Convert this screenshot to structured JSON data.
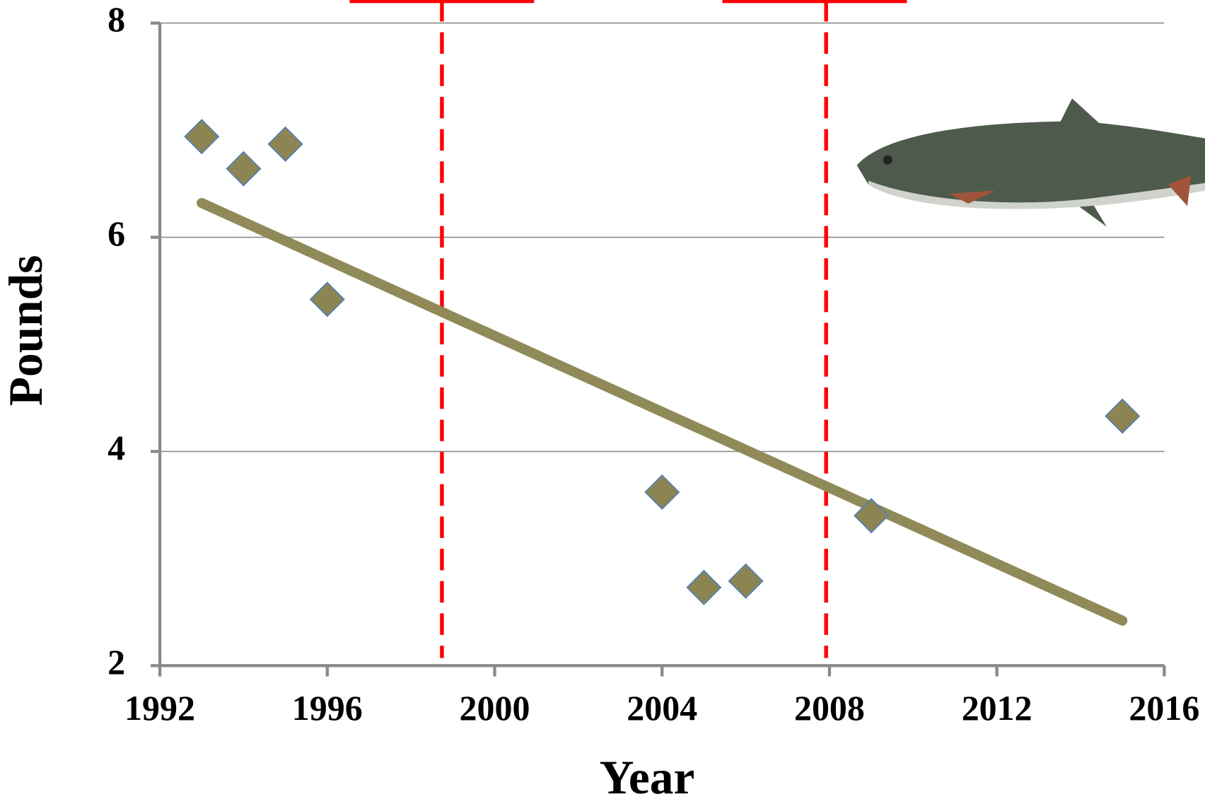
{
  "chart_data": {
    "type": "scatter",
    "x_label": "Year",
    "y_label": "Pounds",
    "x": [
      1993,
      1994,
      1995,
      1996,
      2004,
      2005,
      2006,
      2009,
      2015
    ],
    "values": [
      6.94,
      6.64,
      6.87,
      5.42,
      3.62,
      2.73,
      2.79,
      3.4,
      4.33
    ],
    "color": "#8c8552",
    "marker_edge_color": "#4f7fbf",
    "trend_line": {
      "x": [
        1993,
        2015
      ],
      "values": [
        6.32,
        2.42
      ],
      "color": "#8f8a58"
    },
    "reference_lines_x": [
      1998.74,
      2007.92
    ],
    "reference_line_color": "#ff0000",
    "xlim": [
      1992,
      2016
    ],
    "xticks": [
      1992,
      1996,
      2000,
      2004,
      2008,
      2012,
      2016
    ],
    "ylim": [
      2,
      8
    ],
    "yticks": [
      2,
      4,
      6,
      8
    ],
    "grid": true
  }
}
